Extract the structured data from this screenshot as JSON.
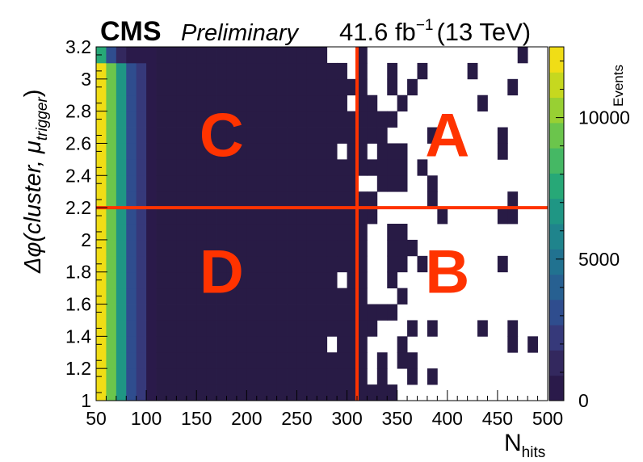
{
  "header": {
    "experiment": "CMS",
    "status": "Preliminary",
    "lumi_value": "41.6 fb",
    "lumi_exp": "−1",
    "energy": "(13 TeV)"
  },
  "chart_data": {
    "type": "heatmap",
    "xlabel_main": "N",
    "xlabel_sub": "hits",
    "ylabel": "Δφ(cluster, μ",
    "ylabel_sub": "trigger",
    "ylabel_close": ")",
    "colorbar_label": "Events",
    "xlim": [
      50,
      500
    ],
    "ylim": [
      1,
      3.2
    ],
    "x_ticks": [
      "50",
      "100",
      "150",
      "200",
      "250",
      "300",
      "350",
      "400",
      "450",
      "500"
    ],
    "x_tick_values": [
      50,
      100,
      150,
      200,
      250,
      300,
      350,
      400,
      450,
      500
    ],
    "y_ticks": [
      "1",
      "1.2",
      "1.4",
      "1.6",
      "1.8",
      "2",
      "2.2",
      "2.4",
      "2.6",
      "2.8",
      "3",
      "3.2"
    ],
    "y_tick_values": [
      1,
      1.2,
      1.4,
      1.6,
      1.8,
      2,
      2.2,
      2.4,
      2.6,
      2.8,
      3,
      3.2
    ],
    "colorbar_ticks": [
      "0",
      "5000",
      "10000"
    ],
    "colorbar_tick_values": [
      0,
      5000,
      10000
    ],
    "colorbar_range": [
      0,
      12500
    ],
    "colormap": [
      "#2a1a4a",
      "#33285e",
      "#36397a",
      "#2f4d8e",
      "#276091",
      "#217290",
      "#1f848c",
      "#1f9684",
      "#27a877",
      "#45b864",
      "#6bc54c",
      "#98d033",
      "#c6d81f",
      "#f0dd16"
    ],
    "bin_width": 10,
    "bin_height": 0.1,
    "low_bins": {
      "x_low_edges": [
        50,
        60,
        70,
        80,
        90,
        100
      ],
      "counts": [
        12000,
        9000,
        6500,
        3500,
        1800,
        400
      ],
      "top_row_counts": [
        7500,
        3500,
        1500,
        800,
        500,
        300
      ]
    },
    "filled_color": "#281b45",
    "empty_bins": [
      [
        280,
        3.1
      ],
      [
        290,
        3.1
      ],
      [
        300,
        3.1
      ],
      [
        320,
        3.1
      ],
      [
        330,
        3.1
      ],
      [
        340,
        3.1
      ],
      [
        350,
        3.1
      ],
      [
        360,
        3.1
      ],
      [
        370,
        3.1
      ],
      [
        380,
        3.1
      ],
      [
        390,
        3.1
      ],
      [
        400,
        3.1
      ],
      [
        410,
        3.1
      ],
      [
        420,
        3.1
      ],
      [
        430,
        3.1
      ],
      [
        440,
        3.1
      ],
      [
        450,
        3.1
      ],
      [
        460,
        3.1
      ],
      [
        480,
        3.1
      ],
      [
        490,
        3.1
      ],
      [
        300,
        3.0
      ],
      [
        320,
        3.0
      ],
      [
        330,
        3.0
      ],
      [
        350,
        3.0
      ],
      [
        360,
        3.0
      ],
      [
        380,
        3.0
      ],
      [
        390,
        3.0
      ],
      [
        400,
        3.0
      ],
      [
        410,
        3.0
      ],
      [
        430,
        3.0
      ],
      [
        440,
        3.0
      ],
      [
        450,
        3.0
      ],
      [
        460,
        3.0
      ],
      [
        470,
        3.0
      ],
      [
        480,
        3.0
      ],
      [
        490,
        3.0
      ],
      [
        320,
        2.9
      ],
      [
        330,
        2.9
      ],
      [
        350,
        2.9
      ],
      [
        370,
        2.9
      ],
      [
        380,
        2.9
      ],
      [
        390,
        2.9
      ],
      [
        400,
        2.9
      ],
      [
        410,
        2.9
      ],
      [
        420,
        2.9
      ],
      [
        430,
        2.9
      ],
      [
        440,
        2.9
      ],
      [
        450,
        2.9
      ],
      [
        470,
        2.9
      ],
      [
        480,
        2.9
      ],
      [
        490,
        2.9
      ],
      [
        300,
        2.8
      ],
      [
        330,
        2.8
      ],
      [
        340,
        2.8
      ],
      [
        360,
        2.8
      ],
      [
        370,
        2.8
      ],
      [
        380,
        2.8
      ],
      [
        390,
        2.8
      ],
      [
        400,
        2.8
      ],
      [
        410,
        2.8
      ],
      [
        420,
        2.8
      ],
      [
        440,
        2.8
      ],
      [
        450,
        2.8
      ],
      [
        460,
        2.8
      ],
      [
        470,
        2.8
      ],
      [
        480,
        2.8
      ],
      [
        490,
        2.8
      ],
      [
        350,
        2.7
      ],
      [
        360,
        2.7
      ],
      [
        370,
        2.7
      ],
      [
        380,
        2.7
      ],
      [
        390,
        2.7
      ],
      [
        400,
        2.7
      ],
      [
        410,
        2.7
      ],
      [
        420,
        2.7
      ],
      [
        430,
        2.7
      ],
      [
        440,
        2.7
      ],
      [
        450,
        2.7
      ],
      [
        460,
        2.7
      ],
      [
        470,
        2.7
      ],
      [
        480,
        2.7
      ],
      [
        490,
        2.7
      ],
      [
        340,
        2.6
      ],
      [
        350,
        2.6
      ],
      [
        360,
        2.6
      ],
      [
        370,
        2.6
      ],
      [
        390,
        2.6
      ],
      [
        400,
        2.6
      ],
      [
        410,
        2.6
      ],
      [
        420,
        2.6
      ],
      [
        430,
        2.6
      ],
      [
        440,
        2.6
      ],
      [
        460,
        2.6
      ],
      [
        470,
        2.6
      ],
      [
        480,
        2.6
      ],
      [
        490,
        2.6
      ],
      [
        290,
        2.5
      ],
      [
        320,
        2.5
      ],
      [
        360,
        2.5
      ],
      [
        370,
        2.5
      ],
      [
        380,
        2.5
      ],
      [
        390,
        2.5
      ],
      [
        400,
        2.5
      ],
      [
        410,
        2.5
      ],
      [
        420,
        2.5
      ],
      [
        430,
        2.5
      ],
      [
        440,
        2.5
      ],
      [
        460,
        2.5
      ],
      [
        470,
        2.5
      ],
      [
        480,
        2.5
      ],
      [
        490,
        2.5
      ],
      [
        360,
        2.4
      ],
      [
        380,
        2.4
      ],
      [
        390,
        2.4
      ],
      [
        400,
        2.4
      ],
      [
        410,
        2.4
      ],
      [
        420,
        2.4
      ],
      [
        430,
        2.4
      ],
      [
        440,
        2.4
      ],
      [
        450,
        2.4
      ],
      [
        460,
        2.4
      ],
      [
        470,
        2.4
      ],
      [
        480,
        2.4
      ],
      [
        490,
        2.4
      ],
      [
        310,
        2.3
      ],
      [
        320,
        2.3
      ],
      [
        360,
        2.3
      ],
      [
        370,
        2.3
      ],
      [
        390,
        2.3
      ],
      [
        400,
        2.3
      ],
      [
        410,
        2.3
      ],
      [
        420,
        2.3
      ],
      [
        430,
        2.3
      ],
      [
        440,
        2.3
      ],
      [
        450,
        2.3
      ],
      [
        460,
        2.3
      ],
      [
        470,
        2.3
      ],
      [
        480,
        2.3
      ],
      [
        490,
        2.3
      ],
      [
        330,
        2.2
      ],
      [
        340,
        2.2
      ],
      [
        350,
        2.2
      ],
      [
        360,
        2.2
      ],
      [
        370,
        2.2
      ],
      [
        390,
        2.2
      ],
      [
        400,
        2.2
      ],
      [
        410,
        2.2
      ],
      [
        420,
        2.2
      ],
      [
        430,
        2.2
      ],
      [
        440,
        2.2
      ],
      [
        450,
        2.2
      ],
      [
        470,
        2.2
      ],
      [
        480,
        2.2
      ],
      [
        490,
        2.2
      ],
      [
        330,
        2.1
      ],
      [
        340,
        2.1
      ],
      [
        350,
        2.1
      ],
      [
        360,
        2.1
      ],
      [
        370,
        2.1
      ],
      [
        380,
        2.1
      ],
      [
        400,
        2.1
      ],
      [
        410,
        2.1
      ],
      [
        420,
        2.1
      ],
      [
        430,
        2.1
      ],
      [
        440,
        2.1
      ],
      [
        470,
        2.1
      ],
      [
        480,
        2.1
      ],
      [
        490,
        2.1
      ],
      [
        320,
        2.0
      ],
      [
        330,
        2.0
      ],
      [
        360,
        2.0
      ],
      [
        370,
        2.0
      ],
      [
        380,
        2.0
      ],
      [
        390,
        2.0
      ],
      [
        400,
        2.0
      ],
      [
        410,
        2.0
      ],
      [
        420,
        2.0
      ],
      [
        430,
        2.0
      ],
      [
        440,
        2.0
      ],
      [
        450,
        2.0
      ],
      [
        460,
        2.0
      ],
      [
        470,
        2.0
      ],
      [
        480,
        2.0
      ],
      [
        490,
        2.0
      ],
      [
        320,
        1.9
      ],
      [
        330,
        1.9
      ],
      [
        370,
        1.9
      ],
      [
        380,
        1.9
      ],
      [
        390,
        1.9
      ],
      [
        400,
        1.9
      ],
      [
        410,
        1.9
      ],
      [
        420,
        1.9
      ],
      [
        430,
        1.9
      ],
      [
        440,
        1.9
      ],
      [
        450,
        1.9
      ],
      [
        460,
        1.9
      ],
      [
        470,
        1.9
      ],
      [
        480,
        1.9
      ],
      [
        490,
        1.9
      ],
      [
        320,
        1.8
      ],
      [
        330,
        1.8
      ],
      [
        360,
        1.8
      ],
      [
        380,
        1.8
      ],
      [
        390,
        1.8
      ],
      [
        400,
        1.8
      ],
      [
        410,
        1.8
      ],
      [
        420,
        1.8
      ],
      [
        430,
        1.8
      ],
      [
        440,
        1.8
      ],
      [
        460,
        1.8
      ],
      [
        470,
        1.8
      ],
      [
        480,
        1.8
      ],
      [
        490,
        1.8
      ],
      [
        290,
        1.7
      ],
      [
        320,
        1.7
      ],
      [
        330,
        1.7
      ],
      [
        350,
        1.7
      ],
      [
        360,
        1.7
      ],
      [
        370,
        1.7
      ],
      [
        380,
        1.7
      ],
      [
        390,
        1.7
      ],
      [
        400,
        1.7
      ],
      [
        410,
        1.7
      ],
      [
        420,
        1.7
      ],
      [
        430,
        1.7
      ],
      [
        440,
        1.7
      ],
      [
        450,
        1.7
      ],
      [
        460,
        1.7
      ],
      [
        470,
        1.7
      ],
      [
        480,
        1.7
      ],
      [
        490,
        1.7
      ],
      [
        320,
        1.6
      ],
      [
        330,
        1.6
      ],
      [
        340,
        1.6
      ],
      [
        360,
        1.6
      ],
      [
        370,
        1.6
      ],
      [
        380,
        1.6
      ],
      [
        390,
        1.6
      ],
      [
        400,
        1.6
      ],
      [
        410,
        1.6
      ],
      [
        420,
        1.6
      ],
      [
        430,
        1.6
      ],
      [
        440,
        1.6
      ],
      [
        450,
        1.6
      ],
      [
        460,
        1.6
      ],
      [
        470,
        1.6
      ],
      [
        480,
        1.6
      ],
      [
        490,
        1.6
      ],
      [
        350,
        1.5
      ],
      [
        360,
        1.5
      ],
      [
        370,
        1.5
      ],
      [
        380,
        1.5
      ],
      [
        390,
        1.5
      ],
      [
        400,
        1.5
      ],
      [
        410,
        1.5
      ],
      [
        420,
        1.5
      ],
      [
        430,
        1.5
      ],
      [
        440,
        1.5
      ],
      [
        450,
        1.5
      ],
      [
        460,
        1.5
      ],
      [
        470,
        1.5
      ],
      [
        480,
        1.5
      ],
      [
        490,
        1.5
      ],
      [
        330,
        1.4
      ],
      [
        340,
        1.4
      ],
      [
        350,
        1.4
      ],
      [
        370,
        1.4
      ],
      [
        390,
        1.4
      ],
      [
        400,
        1.4
      ],
      [
        410,
        1.4
      ],
      [
        420,
        1.4
      ],
      [
        440,
        1.4
      ],
      [
        450,
        1.4
      ],
      [
        470,
        1.4
      ],
      [
        480,
        1.4
      ],
      [
        490,
        1.4
      ],
      [
        280,
        1.3
      ],
      [
        320,
        1.3
      ],
      [
        330,
        1.3
      ],
      [
        340,
        1.3
      ],
      [
        360,
        1.3
      ],
      [
        370,
        1.3
      ],
      [
        380,
        1.3
      ],
      [
        390,
        1.3
      ],
      [
        400,
        1.3
      ],
      [
        410,
        1.3
      ],
      [
        420,
        1.3
      ],
      [
        430,
        1.3
      ],
      [
        440,
        1.3
      ],
      [
        450,
        1.3
      ],
      [
        470,
        1.3
      ],
      [
        490,
        1.3
      ],
      [
        320,
        1.2
      ],
      [
        340,
        1.2
      ],
      [
        370,
        1.2
      ],
      [
        380,
        1.2
      ],
      [
        390,
        1.2
      ],
      [
        400,
        1.2
      ],
      [
        410,
        1.2
      ],
      [
        420,
        1.2
      ],
      [
        430,
        1.2
      ],
      [
        440,
        1.2
      ],
      [
        450,
        1.2
      ],
      [
        460,
        1.2
      ],
      [
        470,
        1.2
      ],
      [
        480,
        1.2
      ],
      [
        490,
        1.2
      ],
      [
        320,
        1.1
      ],
      [
        340,
        1.1
      ],
      [
        350,
        1.1
      ],
      [
        370,
        1.1
      ],
      [
        390,
        1.1
      ],
      [
        400,
        1.1
      ],
      [
        410,
        1.1
      ],
      [
        420,
        1.1
      ],
      [
        430,
        1.1
      ],
      [
        440,
        1.1
      ],
      [
        450,
        1.1
      ],
      [
        460,
        1.1
      ],
      [
        470,
        1.1
      ],
      [
        480,
        1.1
      ],
      [
        490,
        1.1
      ],
      [
        350,
        1.0
      ],
      [
        360,
        1.0
      ],
      [
        370,
        1.0
      ],
      [
        380,
        1.0
      ],
      [
        390,
        1.0
      ],
      [
        400,
        1.0
      ],
      [
        410,
        1.0
      ],
      [
        420,
        1.0
      ],
      [
        430,
        1.0
      ],
      [
        440,
        1.0
      ],
      [
        450,
        1.0
      ],
      [
        460,
        1.0
      ],
      [
        470,
        1.0
      ],
      [
        480,
        1.0
      ],
      [
        490,
        1.0
      ]
    ],
    "cut_x": 310,
    "cut_y": 2.2,
    "cut_color": "#ff3300",
    "regions": [
      {
        "label": "A",
        "x": 400,
        "y": 2.65
      },
      {
        "label": "B",
        "x": 400,
        "y": 1.8
      },
      {
        "label": "C",
        "x": 175,
        "y": 2.65
      },
      {
        "label": "D",
        "x": 175,
        "y": 1.8
      }
    ]
  }
}
